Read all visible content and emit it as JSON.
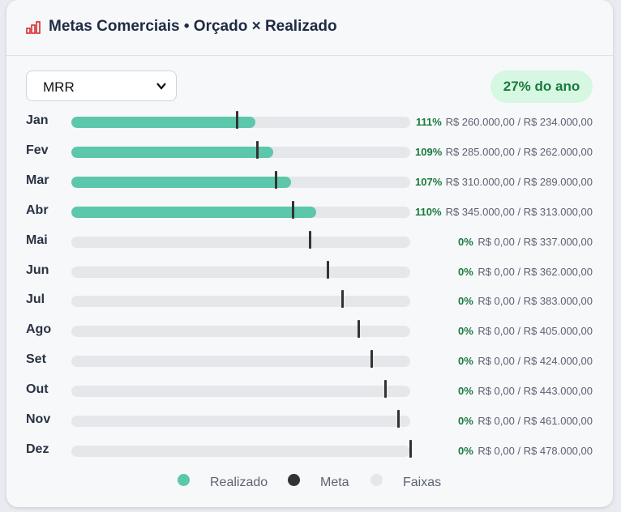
{
  "header": {
    "title": "Metas Comerciais • Orçado × Realizado",
    "icon": "bar-chart-icon"
  },
  "metric_select": {
    "value": "MRR",
    "icon": "chevron-down-icon"
  },
  "year_badge": {
    "label": "27% do ano"
  },
  "colors": {
    "realizado": "#5cc7aa",
    "meta": "#333333",
    "faixas": "#e6e7ea",
    "pct_text": "#1b7a3d",
    "badge_bg": "#d6f7e2"
  },
  "chart_data": {
    "type": "bar",
    "orientation": "horizontal-bullet",
    "categories": [
      "Jan",
      "Fev",
      "Mar",
      "Abr",
      "Mai",
      "Jun",
      "Jul",
      "Ago",
      "Set",
      "Out",
      "Nov",
      "Dez"
    ],
    "scale_max": 478000,
    "series": [
      {
        "name": "Realizado",
        "values": [
          260000,
          285000,
          310000,
          345000,
          0,
          0,
          0,
          0,
          0,
          0,
          0,
          0
        ]
      },
      {
        "name": "Meta",
        "values": [
          234000,
          262000,
          289000,
          313000,
          337000,
          362000,
          383000,
          405000,
          424000,
          443000,
          461000,
          478000
        ]
      }
    ],
    "percent_labels": [
      "111%",
      "109%",
      "107%",
      "110%",
      "0%",
      "0%",
      "0%",
      "0%",
      "0%",
      "0%",
      "0%",
      "0%"
    ],
    "amount_labels": [
      "R$ 260.000,00 / R$ 234.000,00",
      "R$ 285.000,00 / R$ 262.000,00",
      "R$ 310.000,00 / R$ 289.000,00",
      "R$ 345.000,00 / R$ 313.000,00",
      "R$ 0,00 / R$ 337.000,00",
      "R$ 0,00 / R$ 362.000,00",
      "R$ 0,00 / R$ 383.000,00",
      "R$ 0,00 / R$ 405.000,00",
      "R$ 0,00 / R$ 424.000,00",
      "R$ 0,00 / R$ 443.000,00",
      "R$ 0,00 / R$ 461.000,00",
      "R$ 0,00 / R$ 478.000,00"
    ],
    "legend": [
      "Realizado",
      "Meta",
      "Faixas"
    ],
    "legend_position": "bottom-center"
  }
}
